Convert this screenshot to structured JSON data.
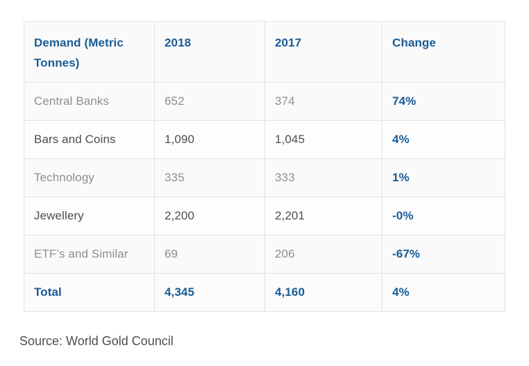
{
  "chart_data": {
    "type": "table",
    "title": "Demand (Metric Tonnes)",
    "columns": [
      "Demand (Metric Tonnes)",
      "2018",
      "2017",
      "Change"
    ],
    "rows": [
      [
        "Central Banks",
        652,
        374,
        "74%"
      ],
      [
        "Bars and Coins",
        1090,
        1045,
        "4%"
      ],
      [
        "Technology",
        335,
        333,
        "1%"
      ],
      [
        "Jewellery",
        2200,
        2201,
        "-0%"
      ],
      [
        "ETF’s and Similar",
        69,
        206,
        "-67%"
      ],
      [
        "Total",
        4345,
        4160,
        "4%"
      ]
    ],
    "source": "Source: World Gold Council"
  },
  "table": {
    "headers": {
      "demand": "Demand (Metric Tonnes)",
      "y2018": "2018",
      "y2017": "2017",
      "change": "Change"
    },
    "rows": [
      {
        "label": "Central Banks",
        "v2018": "652",
        "v2017": "374",
        "change": "74%"
      },
      {
        "label": "Bars and Coins",
        "v2018": "1,090",
        "v2017": "1,045",
        "change": "4%"
      },
      {
        "label": "Technology",
        "v2018": "335",
        "v2017": "333",
        "change": "1%"
      },
      {
        "label": "Jewellery",
        "v2018": "2,200",
        "v2017": "2,201",
        "change": "-0%"
      },
      {
        "label": "ETF’s and Similar",
        "v2018": "69",
        "v2017": "206",
        "change": "-67%"
      },
      {
        "label": "Total",
        "v2018": "4,345",
        "v2017": "4,160",
        "change": "4%"
      }
    ]
  },
  "source": "Source: World Gold Council",
  "colors": {
    "accent_blue": "#1a5b96",
    "text_gray_light": "#8e8e8e",
    "text_gray_dark": "#4e4e4e",
    "border": "#e2e2e2",
    "cell_background": "#fbfbfb"
  }
}
